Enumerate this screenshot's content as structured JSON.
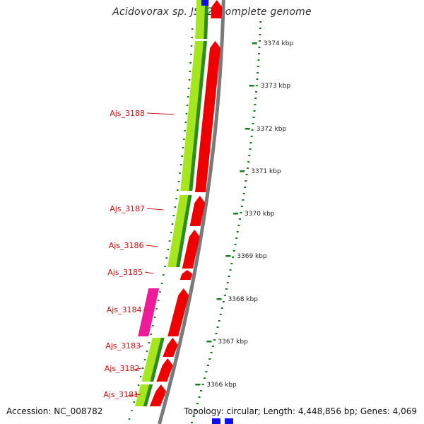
{
  "title": "Acidovorax sp. JS42, complete genome",
  "footer": {
    "accession": "Accession: NC_008782",
    "summary": "Topology: circular; Length: 4,448,856 bp; Genes: 4,069"
  },
  "gene_labels": [
    "Ajs_3188",
    "Ajs_3187",
    "Ajs_3186",
    "Ajs_3185",
    "Ajs_3184",
    "Ajs_3183",
    "Ajs_3182",
    "Ajs_3181"
  ],
  "scale_ticks": [
    "3374 kbp",
    "3373 kbp",
    "3372 kbp",
    "3371 kbp",
    "3370 kbp",
    "3369 kbp",
    "3368 kbp",
    "3367 kbp",
    "3366 kbp"
  ],
  "colors": {
    "label_red": "#d01010",
    "gene_red": "#ee0000",
    "lime": "#a6e61f",
    "green_dark": "#2e8b1e",
    "magenta": "#ee1a9a",
    "blue": "#1010ee",
    "backbone": "#7a7a7a",
    "dots": "#1a7a1a"
  }
}
